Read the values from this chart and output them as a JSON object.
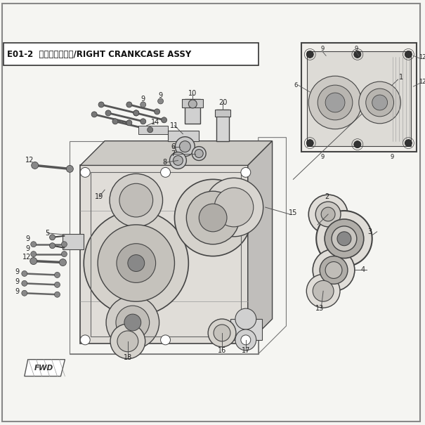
{
  "title": "E01-2  右曲轴算分总成/RIGHT CRANKCASE ASSY",
  "bg_color": "#f5f5f2",
  "border_color": "#555555",
  "line_color": "#444444",
  "light_gray": "#d8d8d8",
  "med_gray": "#b8b8b8",
  "dark_gray": "#888888",
  "white": "#ffffff",
  "title_bg": "#ffffff",
  "figsize": [
    6.05,
    6.05
  ],
  "dpi": 100
}
